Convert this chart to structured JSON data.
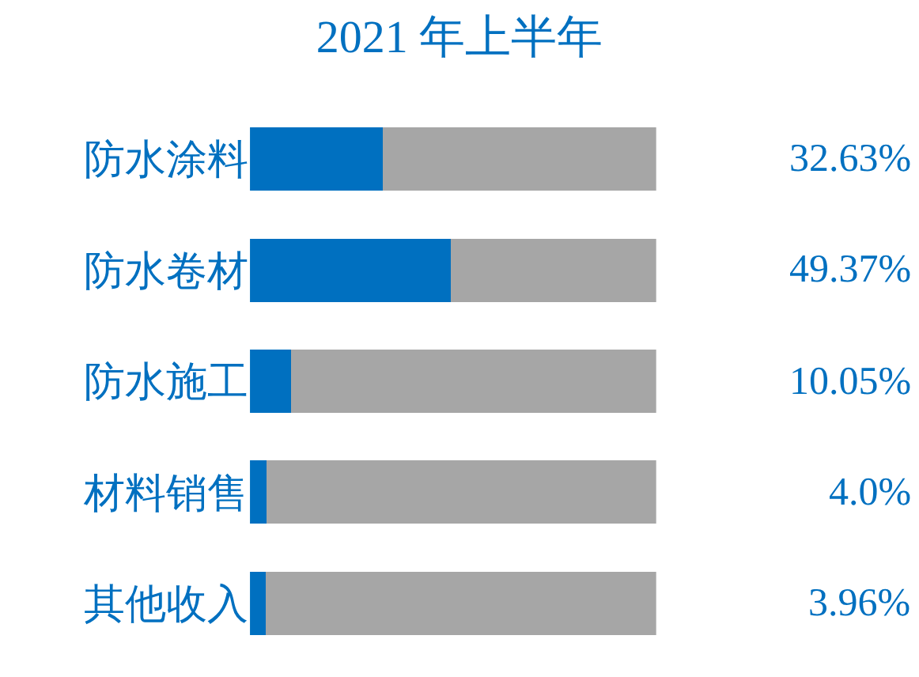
{
  "chart_data": {
    "type": "bar",
    "orientation": "horizontal",
    "stacked": true,
    "title": "2021 年上半年",
    "categories": [
      "防水涂料",
      "防水卷材",
      "防水施工",
      "材料销售",
      "其他收入"
    ],
    "series": [
      {
        "color": "#0070c0",
        "values": [
          32.63,
          49.37,
          10.05,
          4.0,
          3.96
        ],
        "value_labels": [
          "32.63%",
          "49.37%",
          "10.05%",
          "4.0%",
          "3.96%"
        ]
      },
      {
        "color": "#a6a6a6",
        "values": [
          67.37,
          50.63,
          89.95,
          96.0,
          96.04
        ]
      }
    ],
    "xlim": [
      0,
      100
    ],
    "tick_labels": "y"
  }
}
